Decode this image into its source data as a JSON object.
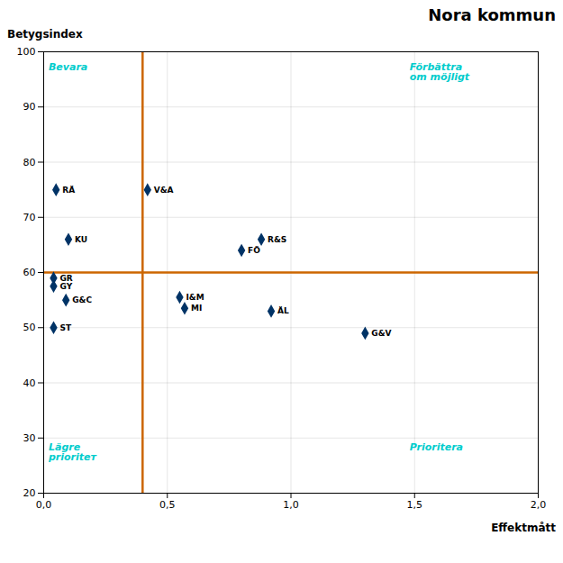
{
  "chart_data": {
    "type": "scatter",
    "title": "Nora kommun",
    "xlabel": "Effektmått",
    "ylabel": "Betygsindex",
    "x": [
      0.05,
      0.1,
      0.04,
      0.04,
      0.09,
      0.04,
      0.42,
      0.55,
      0.57,
      0.8,
      0.88,
      0.92,
      1.3
    ],
    "values": [
      75.0,
      66.0,
      59.0,
      57.5,
      55.0,
      50.0,
      75.0,
      55.5,
      53.5,
      64.0,
      66.0,
      53.0,
      49.0
    ],
    "labels": [
      "RÄ",
      "KU",
      "GR",
      "GY",
      "G&C",
      "ST",
      "V&A",
      "I&M",
      "MI",
      "FÖ",
      "R&S",
      "ÄL",
      "G&V"
    ],
    "color": "#003366",
    "marker": "diamond",
    "xlim": [
      0.0,
      2.0
    ],
    "ylim": [
      20,
      100
    ],
    "xticks": [
      {
        "value": 0.0,
        "label": "0,0"
      },
      {
        "value": 0.5,
        "label": "0,5"
      },
      {
        "value": 1.0,
        "label": "1,0"
      },
      {
        "value": 1.5,
        "label": "1,5"
      },
      {
        "value": 2.0,
        "label": "2,0"
      }
    ],
    "yticks": [
      20,
      30,
      40,
      50,
      60,
      70,
      80,
      90,
      100
    ],
    "grid": true,
    "reference_lines": [
      {
        "axis": "x",
        "value": 0.4,
        "color": "#cc6600"
      },
      {
        "axis": "y",
        "value": 60,
        "color": "#cc6600"
      }
    ],
    "annotations": [
      {
        "x": 0.02,
        "y": 98,
        "text": "Bevara",
        "color": "#00cccc"
      },
      {
        "x": 1.48,
        "y": 98,
        "text": "Förbättra\nom möjligt",
        "color": "#00cccc"
      },
      {
        "x": 0.02,
        "y": 29,
        "text": "Lägre\nprioritет",
        "color": "#00cccc"
      },
      {
        "x": 1.48,
        "y": 29,
        "text": "Prioritera",
        "color": "#00cccc"
      }
    ]
  }
}
